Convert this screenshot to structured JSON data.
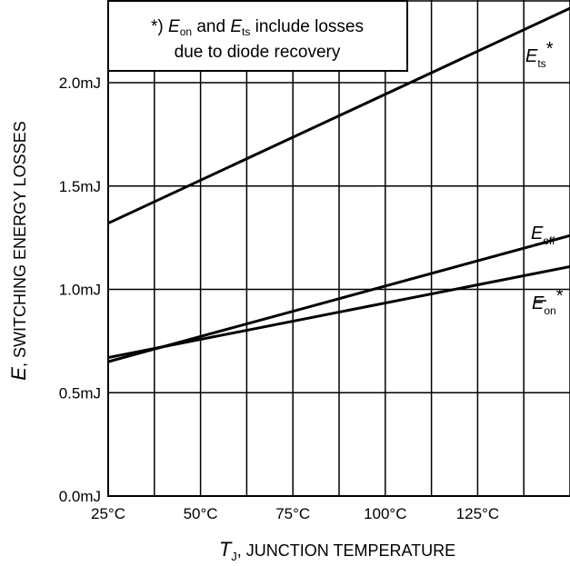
{
  "chart_data": {
    "type": "line",
    "xlabel": {
      "var": "T",
      "sub": "J",
      "text": ", JUNCTION TEMPERATURE"
    },
    "ylabel": {
      "var": "E",
      "text": ", SWITCHING ENERGY LOSSES"
    },
    "xlim": [
      25,
      150
    ],
    "ylim": [
      0,
      2.4
    ],
    "x_ticks": [
      {
        "value": 25,
        "label": "25°C"
      },
      {
        "value": 50,
        "label": "50°C"
      },
      {
        "value": 75,
        "label": "75°C"
      },
      {
        "value": 100,
        "label": "100°C"
      },
      {
        "value": 125,
        "label": "125°C"
      }
    ],
    "y_ticks": [
      {
        "value": 0.0,
        "label": "0.0mJ"
      },
      {
        "value": 0.5,
        "label": "0.5mJ"
      },
      {
        "value": 1.0,
        "label": "1.0mJ"
      },
      {
        "value": 1.5,
        "label": "1.5mJ"
      },
      {
        "value": 2.0,
        "label": "2.0mJ"
      }
    ],
    "grid": true,
    "series": [
      {
        "name": "E_ts*",
        "x": [
          25,
          150
        ],
        "y": [
          1.32,
          2.36
        ]
      },
      {
        "name": "E_off",
        "x": [
          25,
          150
        ],
        "y": [
          0.65,
          1.26
        ]
      },
      {
        "name": "E_on*",
        "x": [
          25,
          150
        ],
        "y": [
          0.67,
          1.11
        ]
      }
    ],
    "series_labels": [
      {
        "var": "E",
        "sub": "ts",
        "suffix": "*"
      },
      {
        "var": "E",
        "sub": "off",
        "suffix": ""
      },
      {
        "var": "E",
        "sub": "on",
        "suffix": "*"
      }
    ],
    "annotation": {
      "line1": {
        "prefix": "*) ",
        "a_var": "E",
        "a_sub": "on",
        "mid": " and ",
        "b_var": "E",
        "b_sub": "ts",
        "suffix": " include losses"
      },
      "line2": "due to diode recovery"
    }
  }
}
